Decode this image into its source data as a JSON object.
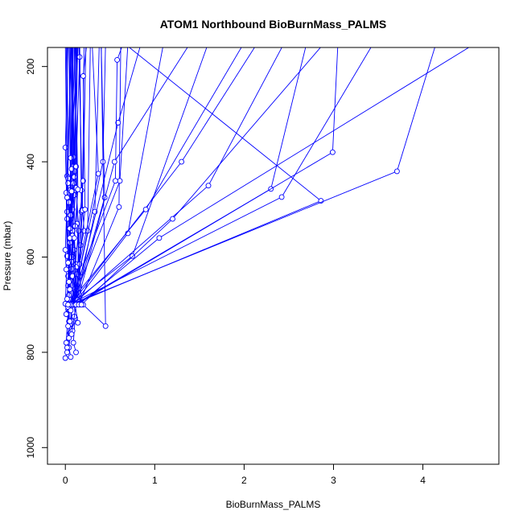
{
  "chart_data": {
    "type": "line",
    "title": "ATOM1 Northbound BioBurnMass_PALMS",
    "xlabel": "BioBurnMass_PALMS",
    "ylabel": "Pressure (mbar)",
    "xlim": [
      -0.2,
      4.85
    ],
    "ylim": [
      1035,
      160
    ],
    "y_reversed": true,
    "x_ticks": [
      0,
      1,
      2,
      3,
      4
    ],
    "x_tick_labels": [
      "0",
      "1",
      "2",
      "3",
      "4"
    ],
    "y_ticks": [
      200,
      400,
      600,
      800,
      1000
    ],
    "y_tick_labels": [
      "200",
      "400",
      "600",
      "800",
      "1000"
    ],
    "grid": false,
    "legend": "none",
    "colors": {
      "series": "#0000ff",
      "axis": "#000000",
      "background": "#ffffff"
    },
    "marker": "open-circle",
    "x_data_extent_beyond_plot": true,
    "profiles": [
      {
        "x": [
          0.0,
          0.02,
          0.05,
          0.04,
          0.08,
          0.06,
          0.05
        ],
        "y": [
          812,
          800,
          760,
          700,
          600,
          500,
          150
        ]
      },
      {
        "x": [
          0.06,
          0.04,
          0.07,
          0.03,
          0.05,
          0.08
        ],
        "y": [
          810,
          790,
          740,
          640,
          520,
          150
        ]
      },
      {
        "x": [
          0.12,
          0.09,
          0.11,
          0.07,
          0.1,
          0.12
        ],
        "y": [
          800,
          780,
          728,
          610,
          470,
          150
        ]
      },
      {
        "x": [
          0.02,
          0.04,
          0.03,
          0.06,
          0.04
        ],
        "y": [
          790,
          735,
          660,
          520,
          150
        ]
      },
      {
        "x": [
          0.01,
          0.03,
          0.05,
          0.02,
          0.07
        ],
        "y": [
          780,
          710,
          600,
          430,
          150
        ]
      },
      {
        "x": [
          0.04,
          0.02,
          0.06,
          0.09,
          0.08
        ],
        "y": [
          770,
          700,
          560,
          390,
          150
        ]
      },
      {
        "x": [
          0.08,
          0.06,
          0.1,
          0.05,
          0.11
        ],
        "y": [
          755,
          690,
          585,
          460,
          150
        ]
      },
      {
        "x": [
          0.03,
          0.05,
          0.02,
          0.06
        ],
        "y": [
          745,
          650,
          505,
          150
        ]
      },
      {
        "x": [
          0.05,
          0.09,
          0.12,
          0.08,
          0.13
        ],
        "y": [
          735,
          700,
          615,
          500,
          150
        ]
      },
      {
        "x": [
          0.1,
          0.13,
          0.15,
          0.11,
          0.14
        ],
        "y": [
          725,
          690,
          545,
          420,
          150
        ]
      },
      {
        "x": [
          0.01,
          0.04,
          0.02,
          0.0,
          0.03
        ],
        "y": [
          720,
          680,
          520,
          370,
          150
        ]
      },
      {
        "x": [
          0.14,
          0.11,
          0.16,
          0.13,
          0.12
        ],
        "y": [
          738,
          700,
          640,
          530,
          150
        ]
      },
      {
        "x": [
          0.07,
          0.12,
          0.17,
          0.19,
          0.15
        ],
        "y": [
          762,
          700,
          575,
          500,
          150
        ]
      },
      {
        "x": [
          0.03,
          0.07,
          0.04,
          0.08,
          0.06
        ],
        "y": [
          705,
          625,
          485,
          410,
          150
        ]
      },
      {
        "x": [
          0.06,
          0.1,
          0.08,
          0.12,
          0.1
        ],
        "y": [
          712,
          668,
          545,
          455,
          150
        ]
      },
      {
        "x": [
          0.0,
          0.02,
          0.01,
          0.03,
          0.02
        ],
        "y": [
          698,
          598,
          465,
          435,
          150
        ]
      },
      {
        "x": [
          0.02,
          0.05,
          0.03,
          0.01
        ],
        "y": [
          688,
          570,
          445,
          150
        ]
      },
      {
        "x": [
          0.09,
          0.13,
          0.18,
          0.16
        ],
        "y": [
          700,
          636,
          505,
          150
        ]
      },
      {
        "x": [
          0.05,
          0.08,
          0.06,
          0.14
        ],
        "y": [
          668,
          555,
          392,
          150
        ]
      },
      {
        "x": [
          0.04,
          0.11,
          0.07,
          0.09
        ],
        "y": [
          652,
          535,
          415,
          150
        ]
      },
      {
        "x": [
          0.01,
          0.0,
          0.02,
          0.0
        ],
        "y": [
          626,
          585,
          475,
          150
        ]
      },
      {
        "x": [
          0.03,
          0.06,
          0.09,
          0.07
        ],
        "y": [
          612,
          512,
          445,
          150
        ]
      },
      {
        "x": [
          0.05,
          0.07,
          0.1,
          0.08
        ],
        "y": [
          540,
          462,
          432,
          150
        ]
      },
      {
        "x": [
          0.16,
          0.08,
          0.05,
          0.12,
          0.16,
          0.15
        ],
        "y": [
          700,
          640,
          560,
          410,
          180,
          150
        ]
      },
      {
        "x": [
          0.1,
          0.13,
          0.21,
          0.18,
          0.16
        ],
        "y": [
          700,
          620,
          545,
          460,
          150
        ]
      },
      {
        "x": [
          0.18,
          0.16,
          0.19,
          0.21
        ],
        "y": [
          700,
          615,
          502,
          150
        ]
      },
      {
        "x": [
          0.12,
          0.1,
          0.14,
          0.11
        ],
        "y": [
          700,
          560,
          458,
          150
        ]
      },
      {
        "x": [
          0.07,
          0.2,
          0.23
        ],
        "y": [
          700,
          440,
          150
        ]
      },
      {
        "x": [
          0.08,
          0.25,
          0.28
        ],
        "y": [
          700,
          545,
          150
        ]
      },
      {
        "x": [
          0.11,
          0.22,
          0.2,
          0.24
        ],
        "y": [
          700,
          500,
          220,
          150
        ]
      },
      {
        "x": [
          0.06,
          0.37,
          0.3
        ],
        "y": [
          700,
          425,
          150
        ]
      },
      {
        "x": [
          0.1,
          0.44,
          0.4
        ],
        "y": [
          700,
          475,
          150
        ]
      },
      {
        "x": [
          0.08,
          0.42,
          0.45
        ],
        "y": [
          700,
          400,
          150
        ]
      },
      {
        "x": [
          0.12,
          0.33,
          0.38
        ],
        "y": [
          700,
          505,
          150
        ]
      },
      {
        "x": [
          0.15,
          0.6,
          0.62
        ],
        "y": [
          700,
          495,
          150
        ]
      },
      {
        "x": [
          0.07,
          0.61,
          0.7
        ],
        "y": [
          700,
          440,
          150
        ]
      },
      {
        "x": [
          0.2,
          0.45,
          0.4
        ],
        "y": [
          700,
          745,
          150
        ]
      },
      {
        "x": [
          0.09,
          0.59,
          0.85
        ],
        "y": [
          700,
          318,
          150
        ]
      },
      {
        "x": [
          0.04,
          0.56,
          0.58,
          0.65
        ],
        "y": [
          700,
          440,
          186,
          150
        ]
      },
      {
        "x": [
          0.05,
          0.75,
          1.6
        ],
        "y": [
          700,
          598,
          150
        ]
      },
      {
        "x": [
          0.14,
          0.55,
          1.4
        ],
        "y": [
          690,
          400,
          150
        ]
      },
      {
        "x": [
          0.09,
          0.7,
          1.1
        ],
        "y": [
          700,
          550,
          150
        ]
      },
      {
        "x": [
          0.06,
          1.3,
          2.15
        ],
        "y": [
          700,
          400,
          150
        ]
      },
      {
        "x": [
          0.08,
          1.6,
          2.45
        ],
        "y": [
          700,
          450,
          150
        ]
      },
      {
        "x": [
          0.1,
          2.3,
          2.7
        ],
        "y": [
          700,
          457,
          150
        ]
      },
      {
        "x": [
          0.04,
          2.42,
          3.45
        ],
        "y": [
          700,
          474,
          150
        ]
      },
      {
        "x": [
          0.07,
          2.86,
          0.65
        ],
        "y": [
          700,
          482,
          150
        ]
      },
      {
        "x": [
          0.12,
          2.99,
          3.05
        ],
        "y": [
          700,
          380,
          150
        ]
      },
      {
        "x": [
          0.05,
          3.71,
          4.15
        ],
        "y": [
          700,
          420,
          150
        ]
      },
      {
        "x": [
          0.15,
          1.05,
          4.6
        ],
        "y": [
          700,
          560,
          150
        ]
      },
      {
        "x": [
          0.03,
          0.9,
          2.0
        ],
        "y": [
          700,
          500,
          150
        ]
      },
      {
        "x": [
          0.18,
          1.2,
          2.9
        ],
        "y": [
          700,
          520,
          150
        ]
      }
    ]
  }
}
